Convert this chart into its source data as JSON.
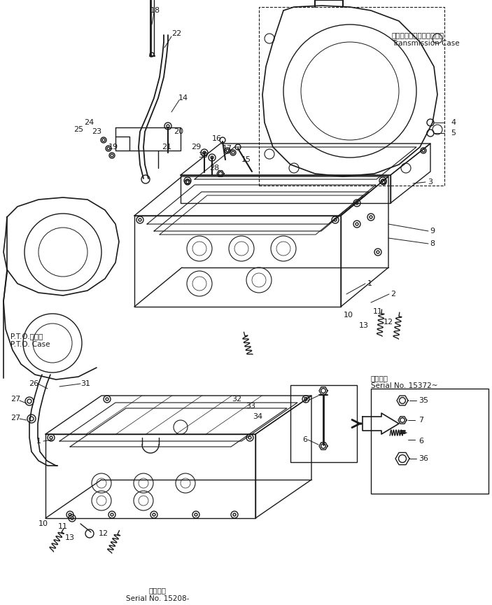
{
  "background_color": "#ffffff",
  "line_color": "#1a1a1a",
  "line_width": 1.0,
  "labels": {
    "transmission_case_jp": "トランスミッションケース",
    "transmission_case_en": "Transmission Case",
    "pto_case_jp": "P.T.O.ケース",
    "pto_case_en": "P.T.O. Case",
    "serial_note1_jp": "適用号等",
    "serial_note1_en": "Serial No. 15208-",
    "serial_note2_jp": "適用号等",
    "serial_note2_en": "Serial No. 15372~"
  }
}
